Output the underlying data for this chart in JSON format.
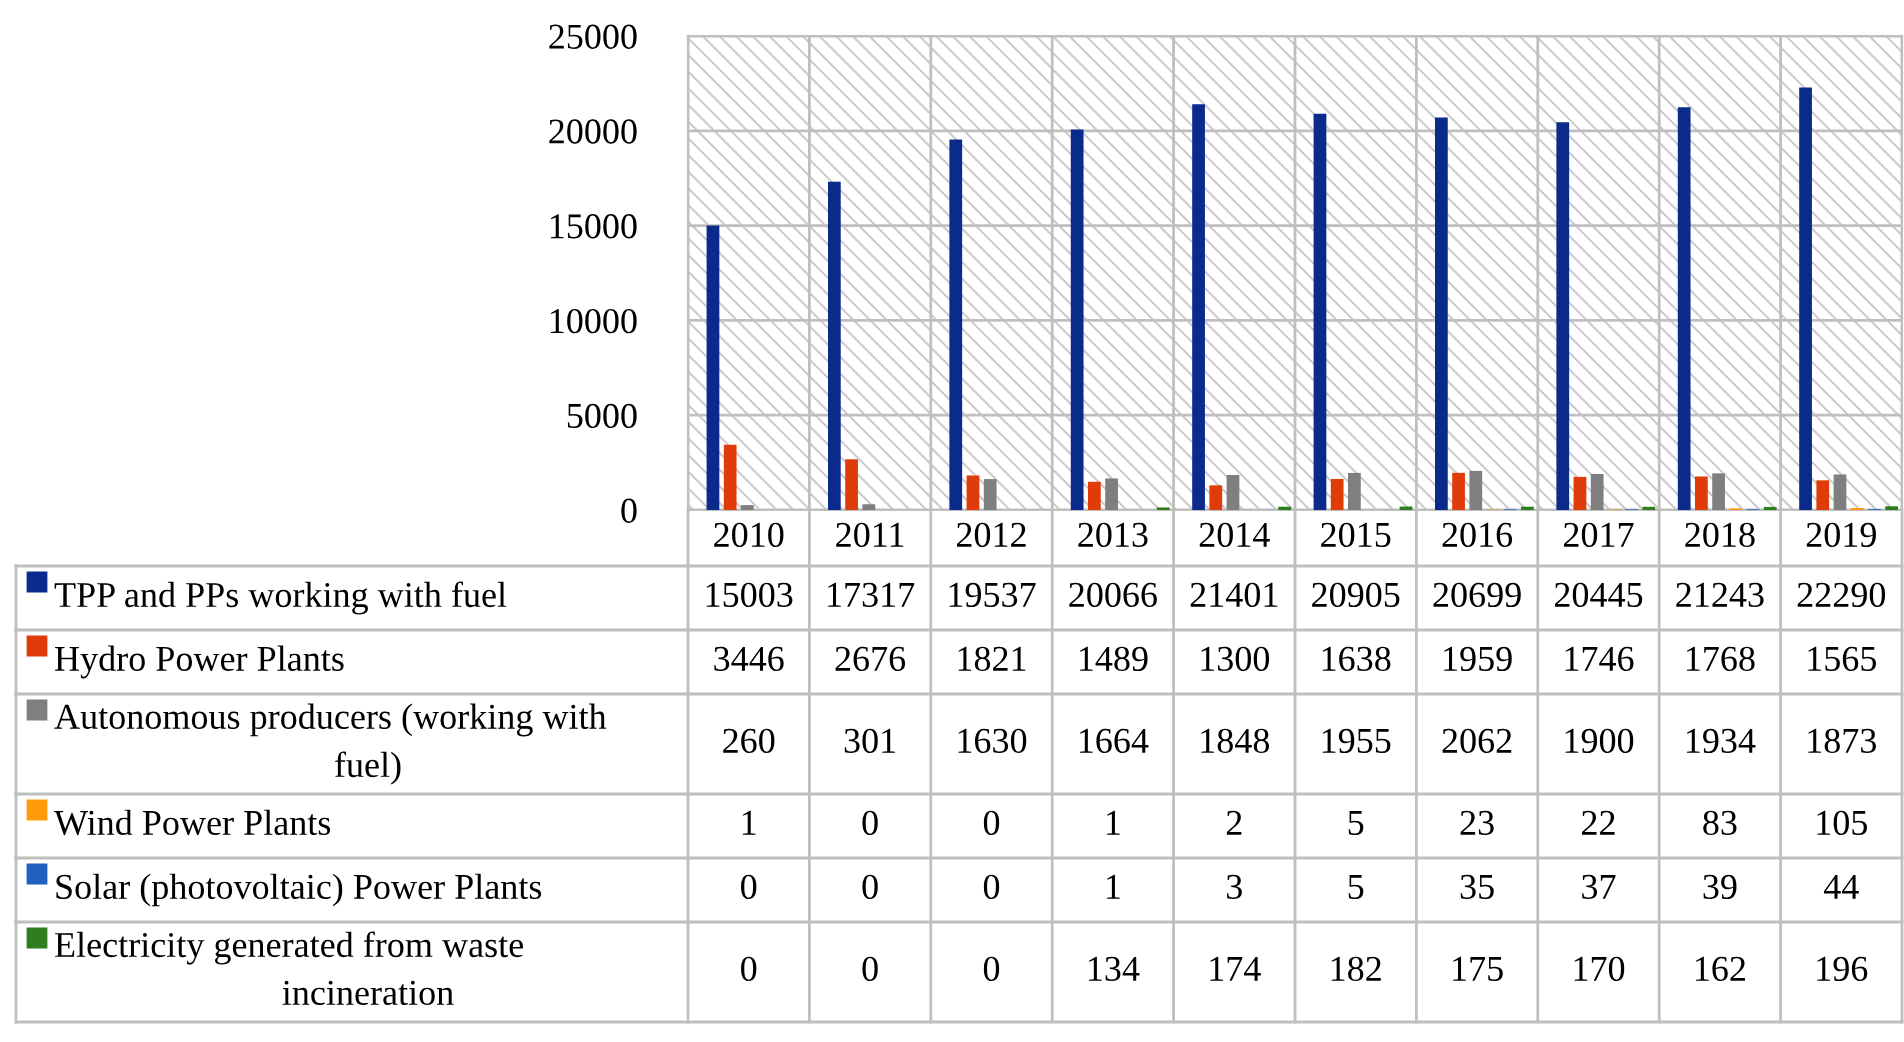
{
  "chart_data": {
    "type": "bar",
    "categories": [
      "2010",
      "2011",
      "2012",
      "2013",
      "2014",
      "2015",
      "2016",
      "2017",
      "2018",
      "2019"
    ],
    "series": [
      {
        "name": "TPP and PPs working with fuel",
        "color": "#0a2a8c",
        "values": [
          15003,
          17317,
          19537,
          20066,
          21401,
          20905,
          20699,
          20445,
          21243,
          22290
        ]
      },
      {
        "name": "Hydro Power Plants",
        "color": "#e03c0a",
        "values": [
          3446,
          2676,
          1821,
          1489,
          1300,
          1638,
          1959,
          1746,
          1768,
          1565
        ]
      },
      {
        "name": "Autonomous producers (working with fuel)",
        "color": "#7f7f7f",
        "values": [
          260,
          301,
          1630,
          1664,
          1848,
          1955,
          2062,
          1900,
          1934,
          1873
        ]
      },
      {
        "name": "Wind Power Plants",
        "color": "#ff9a0a",
        "values": [
          1,
          0,
          0,
          1,
          2,
          5,
          23,
          22,
          83,
          105
        ]
      },
      {
        "name": "Solar (photovoltaic) Power Plants",
        "color": "#1f5fbf",
        "values": [
          0,
          0,
          0,
          1,
          3,
          5,
          35,
          37,
          39,
          44
        ]
      },
      {
        "name": "Electricity generated from waste incineration",
        "color": "#2e7d1e",
        "values": [
          0,
          0,
          0,
          134,
          174,
          182,
          175,
          170,
          162,
          196
        ]
      }
    ],
    "ylim": [
      0,
      25000
    ],
    "yticks": [
      0,
      5000,
      10000,
      15000,
      20000,
      25000
    ],
    "grid": true,
    "legend": "bottom",
    "data_labels": true
  }
}
